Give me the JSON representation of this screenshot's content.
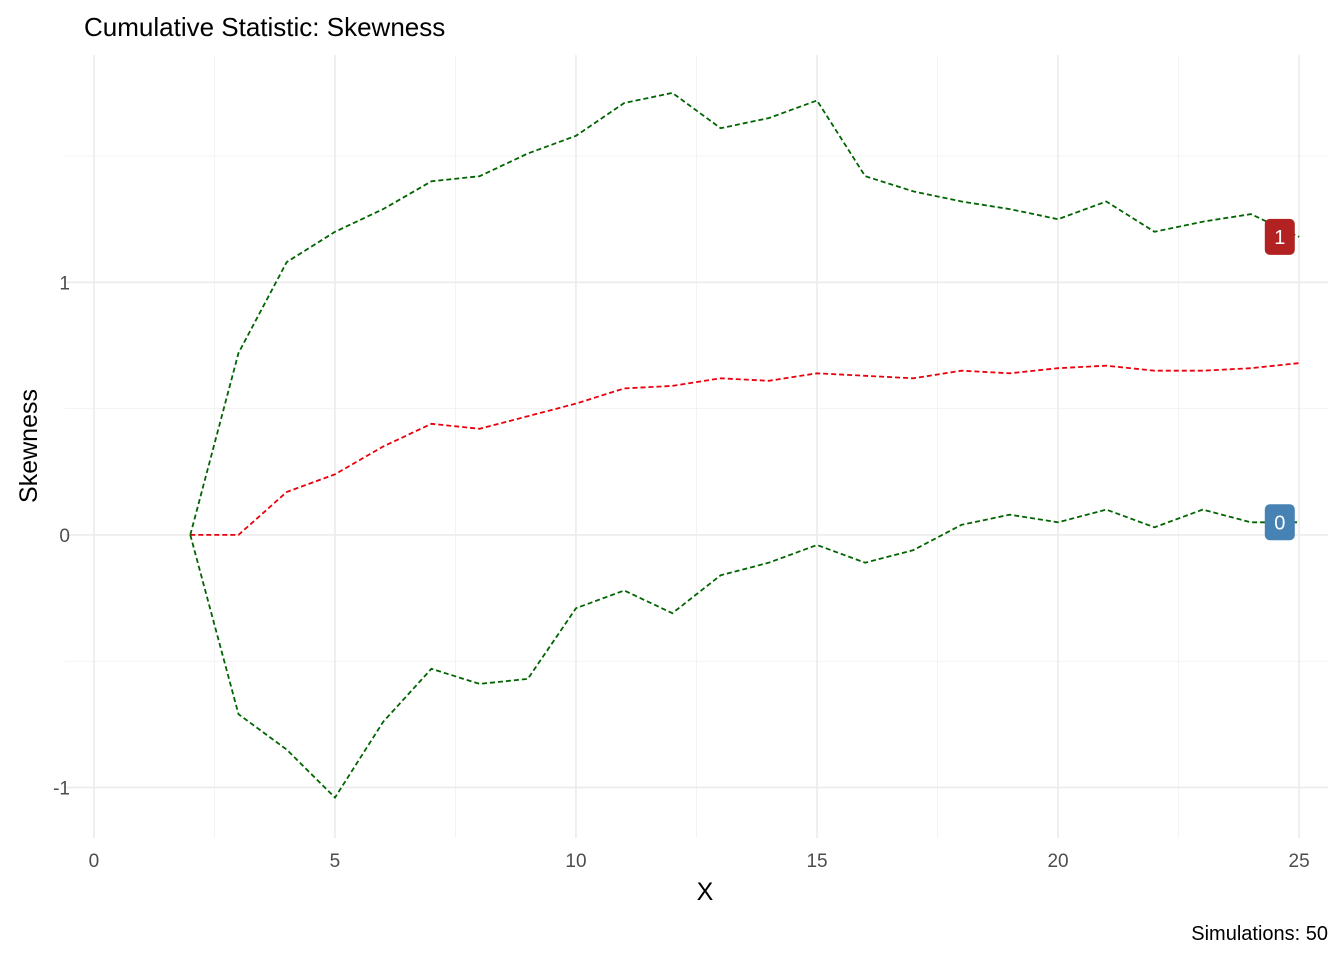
{
  "chart_data": {
    "type": "line",
    "title": "Cumulative Statistic: Skewness",
    "xlabel": "X",
    "ylabel": "Skewness",
    "caption": "Simulations: 50",
    "xlim": [
      -0.6,
      25.6
    ],
    "ylim": [
      -1.2,
      1.9
    ],
    "x_ticks": [
      0,
      5,
      10,
      15,
      20,
      25
    ],
    "x_tick_labels": [
      "0",
      "5",
      "10",
      "15",
      "20",
      "25"
    ],
    "y_ticks": [
      -1,
      0,
      1
    ],
    "y_tick_labels": [
      "-1",
      "0",
      "1"
    ],
    "grid": true,
    "legend": "none",
    "x": [
      2,
      3,
      4,
      5,
      6,
      7,
      8,
      9,
      10,
      11,
      12,
      13,
      14,
      15,
      16,
      17,
      18,
      19,
      20,
      21,
      22,
      23,
      24,
      25
    ],
    "series": [
      {
        "color": "#006400",
        "dash": "dashed",
        "values": [
          0.0,
          0.72,
          1.08,
          1.2,
          1.29,
          1.4,
          1.42,
          1.51,
          1.58,
          1.71,
          1.75,
          1.61,
          1.65,
          1.72,
          1.42,
          1.36,
          1.32,
          1.29,
          1.25,
          1.32,
          1.2,
          1.24,
          1.27,
          1.18
        ]
      },
      {
        "color": "#e8000b",
        "dash": "dashed",
        "values": [
          0.0,
          0.0,
          0.17,
          0.24,
          0.35,
          0.44,
          0.42,
          0.47,
          0.52,
          0.58,
          0.59,
          0.62,
          0.61,
          0.64,
          0.63,
          0.62,
          0.65,
          0.64,
          0.66,
          0.67,
          0.65,
          0.65,
          0.66,
          0.68
        ]
      },
      {
        "color": "#006400",
        "dash": "dashed",
        "values": [
          0.0,
          -0.71,
          -0.85,
          -1.04,
          -0.74,
          -0.53,
          -0.59,
          -0.57,
          -0.29,
          -0.22,
          -0.31,
          -0.16,
          -0.11,
          -0.04,
          -0.11,
          -0.06,
          0.04,
          0.08,
          0.05,
          0.1,
          0.03,
          0.1,
          0.05,
          0.05
        ]
      }
    ],
    "labels": [
      {
        "text": "1",
        "x": 24.6,
        "y": 1.18,
        "color": "#b22222"
      },
      {
        "text": "0",
        "x": 24.6,
        "y": 0.05,
        "color": "#4682b4"
      }
    ]
  }
}
